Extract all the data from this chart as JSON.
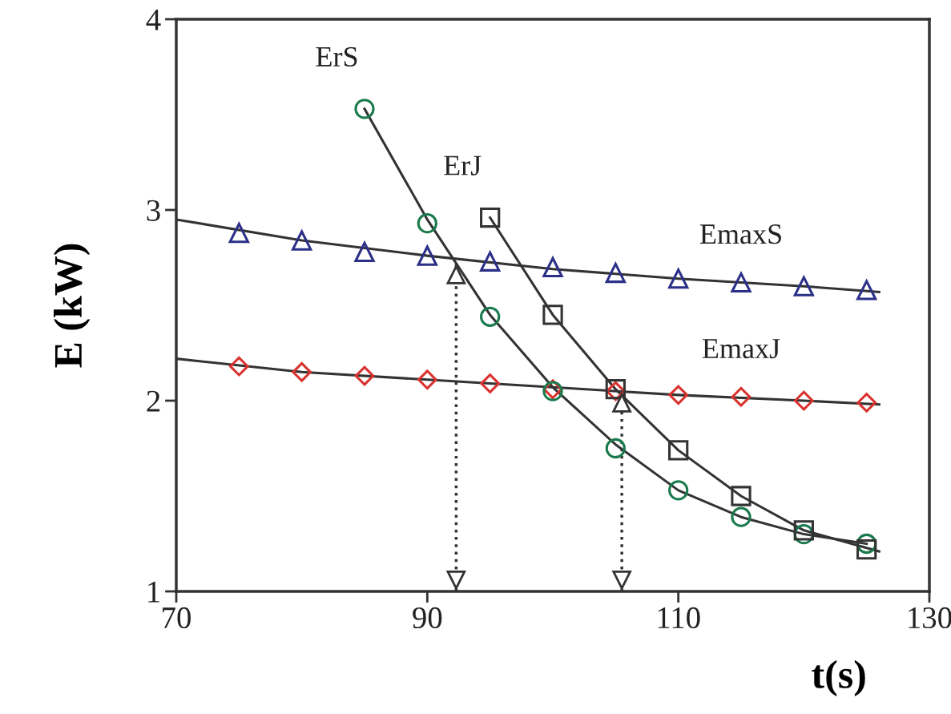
{
  "chart_data": {
    "type": "scatter",
    "xlabel": "t(s)",
    "ylabel": "E (kW)",
    "xlim": [
      70,
      130
    ],
    "ylim": [
      1,
      4
    ],
    "xticks": [
      70,
      90,
      110,
      130
    ],
    "yticks": [
      1,
      2,
      3,
      4
    ],
    "grid": false,
    "series": [
      {
        "name": "EmaxS",
        "marker": "triangle",
        "color": "#2b2f87",
        "x": [
          75,
          80,
          85,
          90,
          95,
          100,
          105,
          110,
          115,
          120,
          125
        ],
        "values": [
          2.88,
          2.84,
          2.78,
          2.76,
          2.73,
          2.7,
          2.67,
          2.64,
          2.62,
          2.6,
          2.58
        ]
      },
      {
        "name": "EmaxJ",
        "marker": "diamond",
        "color": "#d9322e",
        "x": [
          75,
          80,
          85,
          90,
          95,
          100,
          105,
          110,
          115,
          120,
          125
        ],
        "values": [
          2.18,
          2.15,
          2.13,
          2.11,
          2.09,
          2.06,
          2.05,
          2.03,
          2.02,
          2.0,
          1.99
        ]
      },
      {
        "name": "ErS",
        "marker": "circle",
        "color": "#1a7a4c",
        "x": [
          85,
          90,
          95,
          100,
          105,
          110,
          115,
          120,
          125
        ],
        "values": [
          3.53,
          2.93,
          2.44,
          2.05,
          1.75,
          1.53,
          1.39,
          1.3,
          1.25
        ]
      },
      {
        "name": "ErJ",
        "marker": "square",
        "color": "#333333",
        "x": [
          95,
          100,
          105,
          110,
          115,
          120,
          125
        ],
        "values": [
          2.96,
          2.45,
          2.06,
          1.74,
          1.5,
          1.32,
          1.22
        ]
      },
      {
        "type": "line",
        "color": "#333333",
        "x": [
          70,
          80,
          90,
          100,
          110,
          120,
          126
        ],
        "values": [
          2.95,
          2.84,
          2.76,
          2.69,
          2.64,
          2.6,
          2.57
        ]
      },
      {
        "type": "line",
        "color": "#333333",
        "x": [
          70,
          80,
          90,
          100,
          110,
          120,
          126
        ],
        "values": [
          2.22,
          2.15,
          2.11,
          2.07,
          2.03,
          2.0,
          1.98
        ]
      },
      {
        "type": "line",
        "color": "#333333",
        "x": [
          85,
          90,
          95,
          100,
          105,
          110,
          115,
          120,
          125
        ],
        "values": [
          3.53,
          2.95,
          2.45,
          2.07,
          1.77,
          1.53,
          1.39,
          1.3,
          1.25
        ]
      },
      {
        "type": "line",
        "color": "#333333",
        "x": [
          95,
          100,
          105,
          110,
          115,
          120,
          126
        ],
        "values": [
          2.96,
          2.45,
          2.06,
          1.74,
          1.5,
          1.32,
          1.21
        ]
      }
    ],
    "ref_lines": [
      {
        "axis": "x",
        "value": 92.3,
        "line_style": "dotted",
        "color": "#333333"
      },
      {
        "axis": "x",
        "value": 105.5,
        "line_style": "dotted",
        "color": "#333333"
      }
    ]
  }
}
